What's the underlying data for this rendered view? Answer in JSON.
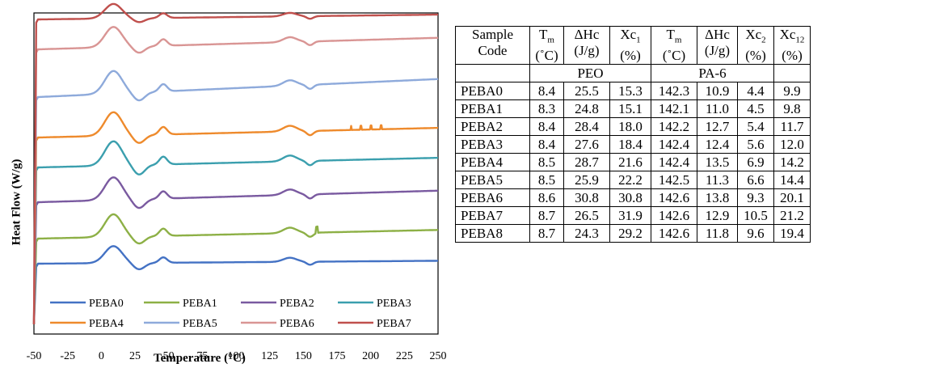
{
  "chart_data": {
    "type": "line",
    "xlabel": "Temperature (°C)",
    "ylabel": "Heat Flow (W/g)",
    "xlim": [
      -50,
      250
    ],
    "x_ticks": [
      "-50",
      "-25",
      "0",
      "25",
      "50",
      "75",
      "100",
      "125",
      "150",
      "175",
      "200",
      "225",
      "250"
    ],
    "legend_position": "bottom, inside plot",
    "series": [
      {
        "name": "PEBA0",
        "color": "#4472c4"
      },
      {
        "name": "PEBA1",
        "color": "#8db046"
      },
      {
        "name": "PEBA2",
        "color": "#7a5aa0"
      },
      {
        "name": "PEBA3",
        "color": "#3b9fae"
      },
      {
        "name": "PEBA4",
        "color": "#ee8a2c"
      },
      {
        "name": "PEBA5",
        "color": "#8eaadb"
      },
      {
        "name": "PEBA6",
        "color": "#d99594"
      },
      {
        "name": "PEBA7",
        "color": "#c0504d"
      }
    ]
  },
  "table": {
    "headers": [
      [
        "Sample",
        "Code"
      ],
      [
        "T",
        "m",
        "(˚C)"
      ],
      [
        "ΔHc",
        "(J/g)"
      ],
      [
        "Xc",
        "1",
        "(%)"
      ],
      [
        "T",
        "m",
        "(˚C)"
      ],
      [
        "ΔHc",
        "(J/g)"
      ],
      [
        "Xc",
        "2",
        "(%)"
      ],
      [
        "Xc",
        "12",
        "(%)"
      ]
    ],
    "group_labels": {
      "peo": "PEO",
      "pa6": "PA-6"
    },
    "rows": [
      [
        "PEBA0",
        "8.4",
        "25.5",
        "15.3",
        "142.3",
        "10.9",
        "4.4",
        "9.9"
      ],
      [
        "PEBA1",
        "8.3",
        "24.8",
        "15.1",
        "142.1",
        "11.0",
        "4.5",
        "9.8"
      ],
      [
        "PEBA2",
        "8.4",
        "28.4",
        "18.0",
        "142.2",
        "12.7",
        "5.4",
        "11.7"
      ],
      [
        "PEBA3",
        "8.4",
        "27.6",
        "18.4",
        "142.4",
        "12.4",
        "5.6",
        "12.0"
      ],
      [
        "PEBA4",
        "8.5",
        "28.7",
        "21.6",
        "142.4",
        "13.5",
        "6.9",
        "14.2"
      ],
      [
        "PEBA5",
        "8.5",
        "25.9",
        "22.2",
        "142.5",
        "11.3",
        "6.6",
        "14.4"
      ],
      [
        "PEBA6",
        "8.6",
        "30.8",
        "30.8",
        "142.6",
        "13.8",
        "9.3",
        "20.1"
      ],
      [
        "PEBA7",
        "8.7",
        "26.5",
        "31.9",
        "142.6",
        "12.9",
        "10.5",
        "21.2"
      ],
      [
        "PEBA8",
        "8.7",
        "24.3",
        "29.2",
        "142.6",
        "11.8",
        "9.6",
        "19.4"
      ]
    ]
  }
}
